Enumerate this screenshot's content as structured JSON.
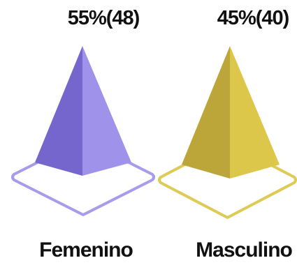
{
  "chart_data": {
    "type": "bar",
    "style": "pyramid",
    "categories": [
      "Femenino",
      "Masculino"
    ],
    "values": [
      55,
      45
    ],
    "counts": [
      48,
      40
    ],
    "data_labels": [
      "55%(48)",
      "45%(40)"
    ],
    "colors": {
      "Femenino": {
        "light": "#9e92ea",
        "dark": "#7466cc",
        "ring": "#a79bec"
      },
      "Masculino": {
        "light": "#dcc74a",
        "dark": "#bca63a",
        "ring": "#dccb55"
      }
    }
  }
}
